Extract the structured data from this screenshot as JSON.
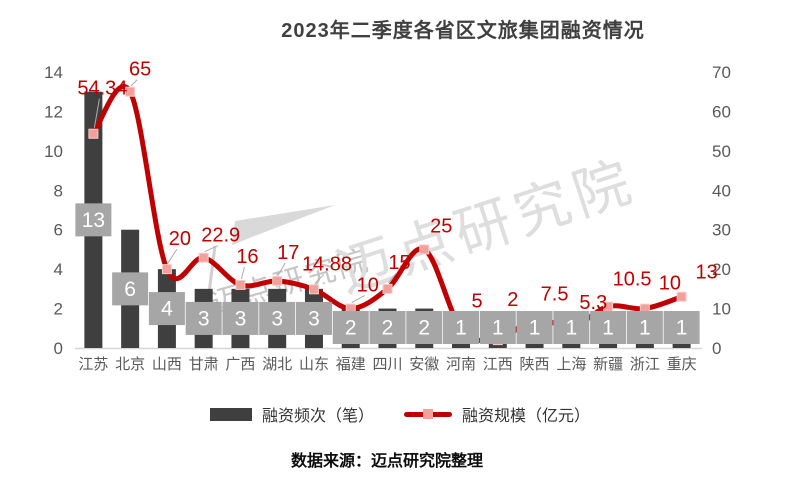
{
  "title": "2023年二季度各省区文旅集团融资情况",
  "source_note": "数据来源：迈点研究院整理",
  "watermark": {
    "large": "迈点研究院",
    "small": "迈点研究院"
  },
  "legend": {
    "items": [
      {
        "label": "融资频次（笔）",
        "swatch": "bar"
      },
      {
        "label": "融资规模（亿元）",
        "swatch": "line"
      }
    ]
  },
  "colors": {
    "bar": "#3f3f3f",
    "bar_label_box": "#a6a6a6",
    "bar_label_text": "#ffffff",
    "line": "#c00000",
    "marker": "#f2a09b",
    "marker_edge": "#f8cec9",
    "value_label": "#c00000",
    "axis_text": "#595959",
    "axis_line": "#d6d6d6",
    "leader_line": "#ababab",
    "title_text": "#404040"
  },
  "chart_data": {
    "type": "combo-bar-line",
    "title": "2023年二季度各省区文旅集团融资情况",
    "categories": [
      "江苏",
      "北京",
      "山西",
      "甘肃",
      "广西",
      "湖北",
      "山东",
      "福建",
      "四川",
      "安徽",
      "河南",
      "江西",
      "陕西",
      "上海",
      "新疆",
      "浙江",
      "重庆"
    ],
    "series": [
      {
        "name": "融资频次（笔）",
        "type": "bar",
        "axis": "left",
        "values": [
          13,
          6,
          4,
          3,
          3,
          3,
          3,
          2,
          2,
          2,
          1,
          1,
          1,
          1,
          1,
          1,
          1
        ]
      },
      {
        "name": "融资规模（亿元）",
        "type": "line",
        "axis": "right",
        "values": [
          54.34,
          65,
          20,
          22.9,
          16,
          17,
          14.88,
          10,
          15,
          25,
          5,
          2,
          7.5,
          5.3,
          10.5,
          10,
          13
        ]
      }
    ],
    "left_axis": {
      "ticks": [
        0,
        2,
        4,
        6,
        8,
        10,
        12,
        14
      ],
      "range": [
        0,
        14
      ]
    },
    "right_axis": {
      "ticks": [
        0,
        10,
        20,
        30,
        40,
        50,
        60,
        70
      ],
      "range": [
        0,
        70
      ]
    },
    "grid": false,
    "legend_position": "bottom"
  }
}
